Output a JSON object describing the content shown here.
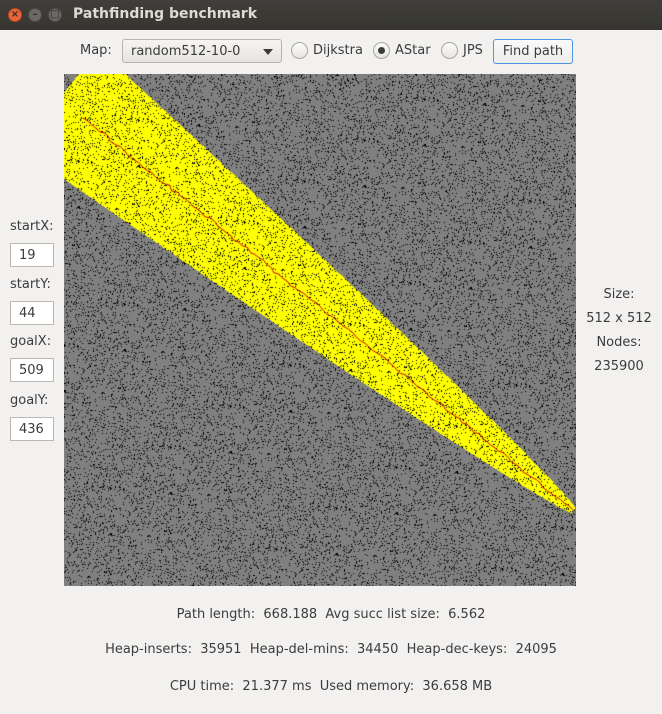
{
  "window": {
    "title": "Pathfinding benchmark"
  },
  "toolbar": {
    "map_label": "Map:",
    "map_value": "random512-10-0",
    "algorithms": [
      {
        "label": "Dijkstra",
        "selected": false
      },
      {
        "label": "AStar",
        "selected": true
      },
      {
        "label": "JPS",
        "selected": false
      }
    ],
    "find_label": "Find path"
  },
  "inputs": {
    "startX": {
      "label": "startX:",
      "value": "19"
    },
    "startY": {
      "label": "startY:",
      "value": "44"
    },
    "goalX": {
      "label": "goalX:",
      "value": "509"
    },
    "goalY": {
      "label": "goalY:",
      "value": "436"
    }
  },
  "map_info": {
    "size_label": "Size:",
    "size_value": "512 x 512",
    "nodes_label": "Nodes:",
    "nodes_value": "235900"
  },
  "stats": {
    "path_length": "Path length:  668.188  Avg succ list size:  6.562",
    "heap": "Heap-inserts:  35951  Heap-del-mins:  34450  Heap-dec-keys:  24095",
    "cpu": "CPU time:  21.377 ms  Used memory:  36.658 MB"
  },
  "colors": {
    "explored": "#ffff00",
    "path": "#c80000",
    "free": "#808080",
    "wall": "#000000"
  }
}
